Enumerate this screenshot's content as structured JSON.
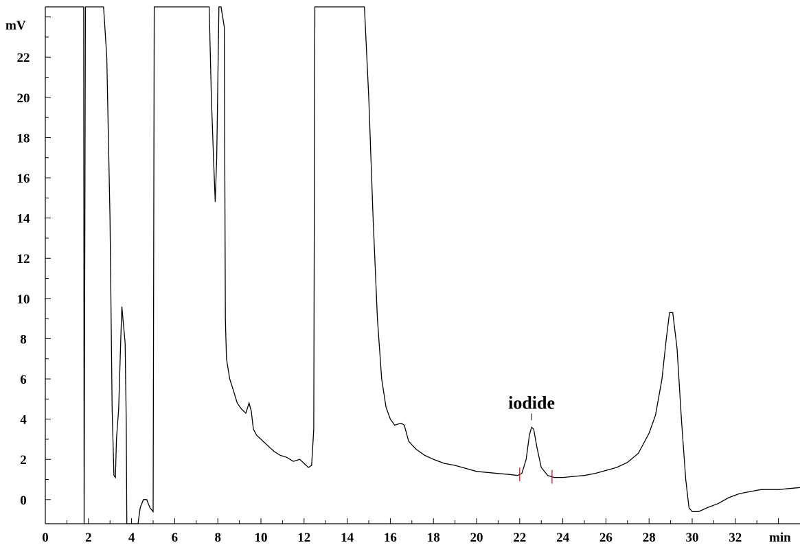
{
  "chart_data": {
    "type": "line",
    "title": "",
    "xlabel": "min",
    "ylabel": "mV",
    "xlim": [
      0,
      35
    ],
    "ylim": [
      -1.2,
      24.5
    ],
    "xticks": [
      0,
      2,
      4,
      6,
      8,
      10,
      12,
      14,
      16,
      18,
      20,
      22,
      24,
      26,
      28,
      30,
      32
    ],
    "yticks": [
      0,
      2,
      4,
      6,
      8,
      10,
      12,
      14,
      16,
      18,
      20,
      22
    ],
    "grid": false,
    "series": [
      {
        "points": [
          [
            0.0,
            24.5
          ],
          [
            1.78,
            24.5
          ],
          [
            1.8,
            -1.2
          ],
          [
            1.86,
            24.5
          ],
          [
            2.7,
            24.5
          ],
          [
            2.85,
            22.0
          ],
          [
            3.0,
            14.0
          ],
          [
            3.1,
            4.5
          ],
          [
            3.18,
            1.2
          ],
          [
            3.25,
            1.1
          ],
          [
            3.3,
            3.0
          ],
          [
            3.4,
            4.5
          ],
          [
            3.5,
            8.0
          ],
          [
            3.55,
            9.6
          ],
          [
            3.6,
            9.0
          ],
          [
            3.7,
            7.8
          ],
          [
            3.75,
            4.0
          ],
          [
            3.78,
            -1.2
          ],
          [
            4.3,
            -1.2
          ],
          [
            4.4,
            -0.4
          ],
          [
            4.55,
            0.0
          ],
          [
            4.7,
            0.0
          ],
          [
            4.85,
            -0.4
          ],
          [
            5.0,
            -0.6
          ],
          [
            5.05,
            24.5
          ],
          [
            7.6,
            24.5
          ],
          [
            7.7,
            20.0
          ],
          [
            7.8,
            17.0
          ],
          [
            7.88,
            14.8
          ],
          [
            7.95,
            17.0
          ],
          [
            8.05,
            24.5
          ],
          [
            8.15,
            24.5
          ],
          [
            8.3,
            23.5
          ],
          [
            8.35,
            9.0
          ],
          [
            8.4,
            7.0
          ],
          [
            8.55,
            6.0
          ],
          [
            8.7,
            5.5
          ],
          [
            8.9,
            4.8
          ],
          [
            9.1,
            4.5
          ],
          [
            9.3,
            4.3
          ],
          [
            9.45,
            4.8
          ],
          [
            9.55,
            4.4
          ],
          [
            9.65,
            3.5
          ],
          [
            9.8,
            3.2
          ],
          [
            10.0,
            3.0
          ],
          [
            10.3,
            2.7
          ],
          [
            10.6,
            2.4
          ],
          [
            10.9,
            2.2
          ],
          [
            11.2,
            2.1
          ],
          [
            11.5,
            1.9
          ],
          [
            11.8,
            2.0
          ],
          [
            12.0,
            1.8
          ],
          [
            12.2,
            1.6
          ],
          [
            12.35,
            1.7
          ],
          [
            12.45,
            3.5
          ],
          [
            12.5,
            24.5
          ],
          [
            14.8,
            24.5
          ],
          [
            15.0,
            20.0
          ],
          [
            15.2,
            14.0
          ],
          [
            15.4,
            9.0
          ],
          [
            15.6,
            6.0
          ],
          [
            15.8,
            4.6
          ],
          [
            16.0,
            4.0
          ],
          [
            16.2,
            3.7
          ],
          [
            16.5,
            3.8
          ],
          [
            16.65,
            3.7
          ],
          [
            16.85,
            2.9
          ],
          [
            17.2,
            2.5
          ],
          [
            17.6,
            2.2
          ],
          [
            18.0,
            2.0
          ],
          [
            18.5,
            1.8
          ],
          [
            19.0,
            1.7
          ],
          [
            19.5,
            1.55
          ],
          [
            20.0,
            1.4
          ],
          [
            20.5,
            1.35
          ],
          [
            21.0,
            1.3
          ],
          [
            21.5,
            1.25
          ],
          [
            21.9,
            1.2
          ],
          [
            22.1,
            1.3
          ],
          [
            22.3,
            2.0
          ],
          [
            22.45,
            3.2
          ],
          [
            22.55,
            3.6
          ],
          [
            22.65,
            3.5
          ],
          [
            22.8,
            2.6
          ],
          [
            23.0,
            1.6
          ],
          [
            23.3,
            1.2
          ],
          [
            23.6,
            1.1
          ],
          [
            24.0,
            1.1
          ],
          [
            24.5,
            1.15
          ],
          [
            25.0,
            1.2
          ],
          [
            25.5,
            1.3
          ],
          [
            26.0,
            1.45
          ],
          [
            26.5,
            1.6
          ],
          [
            27.0,
            1.85
          ],
          [
            27.5,
            2.3
          ],
          [
            28.0,
            3.3
          ],
          [
            28.3,
            4.2
          ],
          [
            28.6,
            6.0
          ],
          [
            28.8,
            8.0
          ],
          [
            28.95,
            9.3
          ],
          [
            29.1,
            9.3
          ],
          [
            29.3,
            7.5
          ],
          [
            29.5,
            4.0
          ],
          [
            29.7,
            1.0
          ],
          [
            29.85,
            -0.4
          ],
          [
            30.0,
            -0.6
          ],
          [
            30.3,
            -0.6
          ],
          [
            30.7,
            -0.4
          ],
          [
            31.2,
            -0.2
          ],
          [
            31.7,
            0.1
          ],
          [
            32.2,
            0.3
          ],
          [
            32.7,
            0.4
          ],
          [
            33.2,
            0.5
          ],
          [
            34.0,
            0.5
          ],
          [
            35.0,
            0.6
          ]
        ]
      }
    ],
    "peak_marks": [
      22.0,
      23.5
    ],
    "annotations": [
      {
        "text": "iodide",
        "x": 22.55,
        "y": 3.6
      }
    ]
  }
}
